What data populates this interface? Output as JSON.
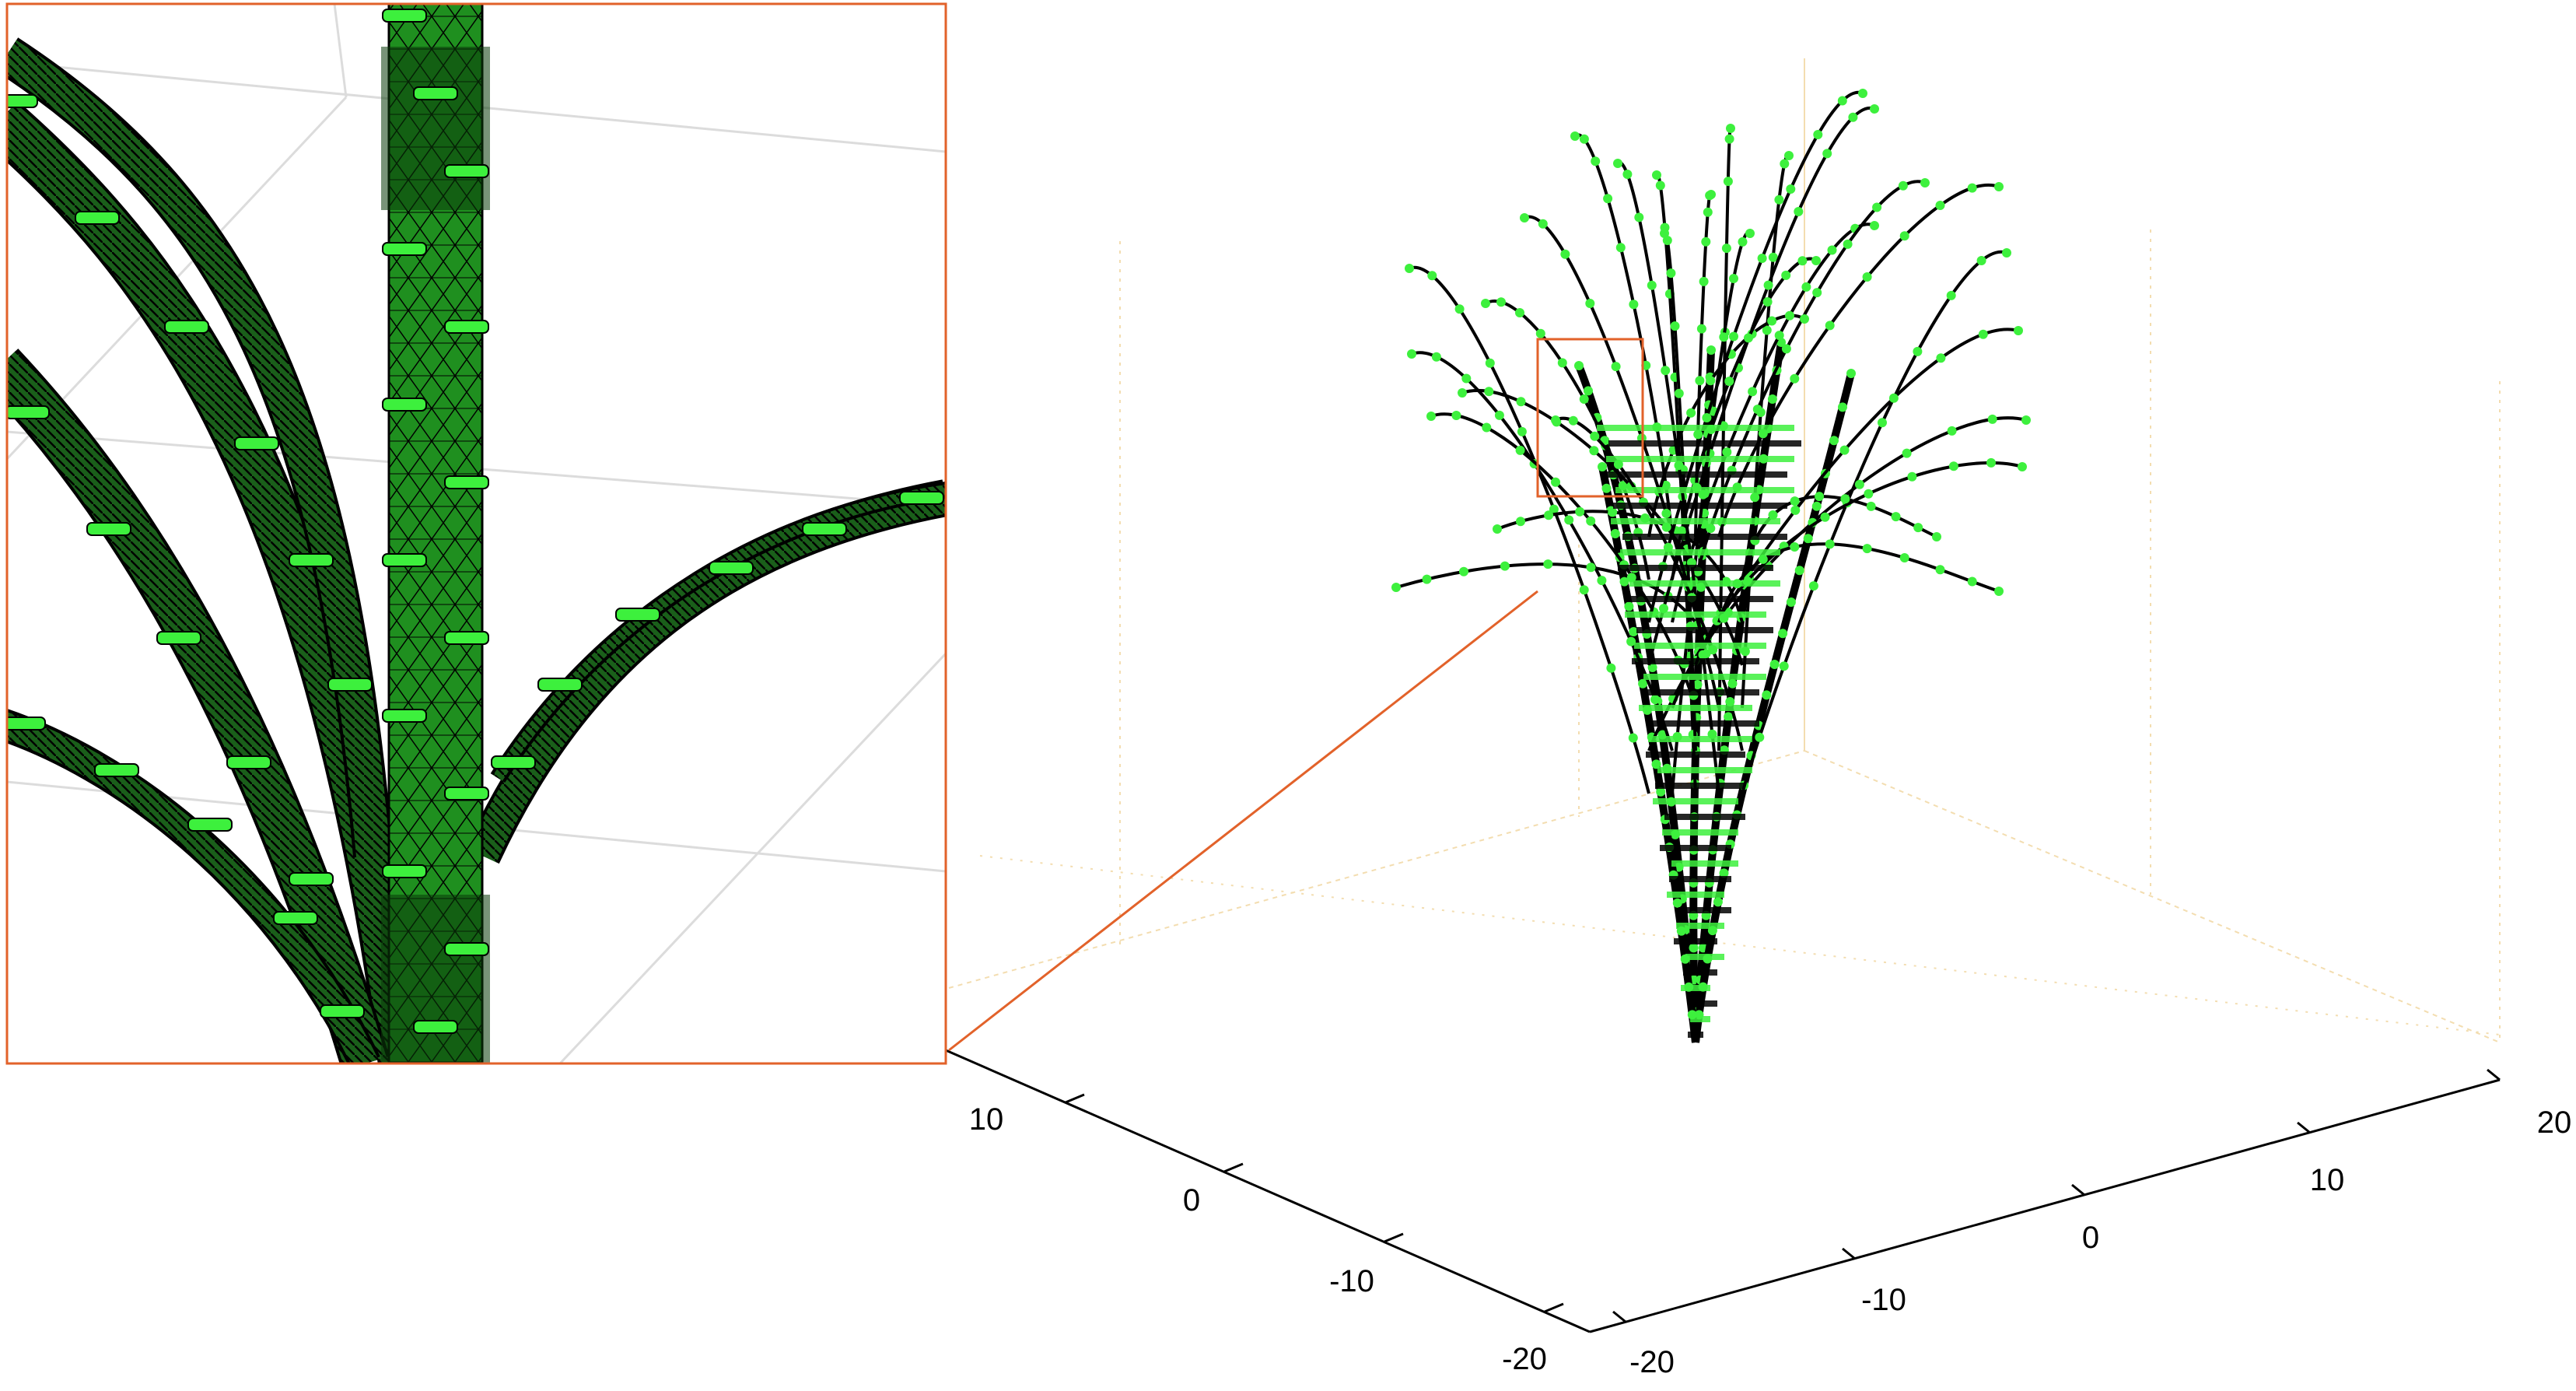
{
  "figure": {
    "axis_a_ticks": [
      "10",
      "0",
      "-10",
      "-20"
    ],
    "axis_b_ticks": [
      "-20",
      "-10",
      "0",
      "10",
      "20"
    ]
  },
  "colors": {
    "node_marker": "#3df03d",
    "stem_fill": "#1f8f1f",
    "mesh_edge": "#000000",
    "zoom_frame": "#e2622a",
    "grid_line": "#e8e8e8",
    "box_edge": "#f3ddb0",
    "background": "#ffffff"
  },
  "panels": {
    "main": "3d-plant-branching-structure",
    "inset": "magnified-stem-junction"
  }
}
